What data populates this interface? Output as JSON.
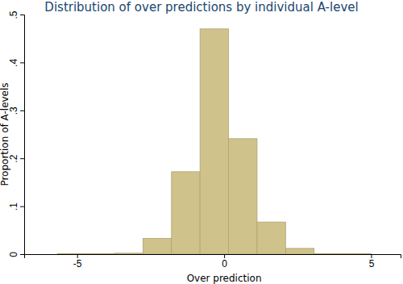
{
  "chart_data": {
    "type": "histogram",
    "title": "Distribution of over predictions by individual A-level",
    "x_label": "Over prediction",
    "y_label": "Proportion of A-levels",
    "bins": [
      -5.67,
      -4.7,
      -3.73,
      -2.76,
      -1.79,
      -0.82,
      0.15,
      1.12,
      2.09,
      3.06,
      4.03,
      5.0
    ],
    "values": [
      0.001,
      0.001,
      0.002,
      0.033,
      0.172,
      0.47,
      0.241,
      0.067,
      0.012,
      0.001,
      0.001
    ],
    "color": "#cfc38b",
    "xlim": [
      -6.8,
      6
    ],
    "ylim": [
      0,
      0.5
    ],
    "xticks": [
      -5,
      0,
      5
    ],
    "yticks": [
      0,
      {
        "value": 0.1,
        "label": ".1"
      },
      {
        "value": 0.2,
        "label": ".2"
      },
      {
        "value": 0.3,
        "label": ".3"
      },
      {
        "value": 0.4,
        "label": ".4"
      },
      {
        "value": 0.5,
        "label": ".5"
      }
    ],
    "grid": false
  }
}
